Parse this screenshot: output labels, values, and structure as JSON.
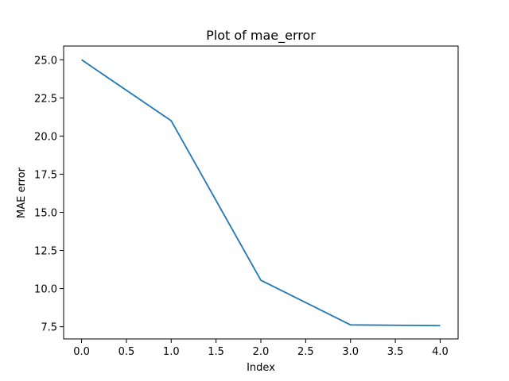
{
  "chart_data": {
    "type": "line",
    "title": "Plot of mae_error",
    "xlabel": "Index",
    "ylabel": "MAE error",
    "x": [
      0,
      1,
      2,
      3,
      4
    ],
    "series": [
      {
        "values": [
          25.0,
          21.0,
          10.55,
          7.62,
          7.57
        ],
        "color": "#1f77b4"
      }
    ],
    "xlim": [
      -0.2,
      4.2
    ],
    "ylim": [
      6.7,
      25.9
    ],
    "xticks": [
      0,
      0.5,
      1,
      1.5,
      2,
      2.5,
      3,
      3.5,
      4
    ],
    "xtick_labels": [
      "0.0",
      "0.5",
      "1.0",
      "1.5",
      "2.0",
      "2.5",
      "3.0",
      "3.5",
      "4.0"
    ],
    "yticks": [
      7.5,
      10,
      12.5,
      15,
      17.5,
      20,
      22.5,
      25
    ],
    "ytick_labels": [
      "7.5",
      "10.0",
      "12.5",
      "15.0",
      "17.5",
      "20.0",
      "22.5",
      "25.0"
    ],
    "grid": false,
    "legend": "none"
  }
}
